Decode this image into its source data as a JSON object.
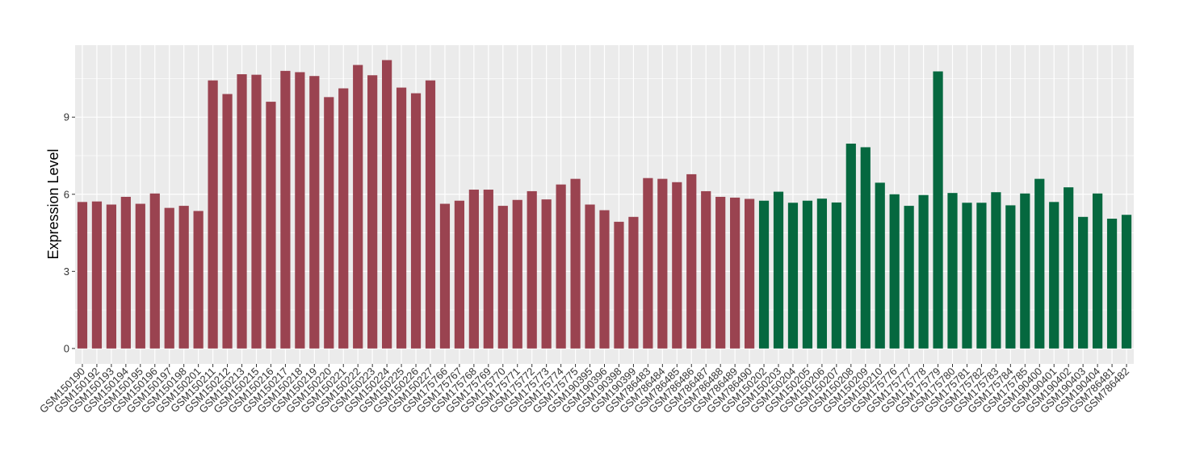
{
  "chart_data": {
    "type": "bar",
    "ylabel": "Expression Level",
    "xlabel": "",
    "ylim": [
      -0.6,
      11.8
    ],
    "yticks": [
      0,
      3,
      6,
      9
    ],
    "grid": true,
    "legend": "none",
    "colors": {
      "group1": "#9a4350",
      "group2": "#05683f",
      "panel": "#ebebeb",
      "grid": "#ffffff"
    },
    "categories": [
      "GSM150190",
      "GSM150192",
      "GSM150193",
      "GSM150194",
      "GSM150195",
      "GSM150196",
      "GSM150197",
      "GSM150198",
      "GSM150201",
      "GSM150211",
      "GSM150212",
      "GSM150213",
      "GSM150215",
      "GSM150216",
      "GSM150217",
      "GSM150218",
      "GSM150219",
      "GSM150220",
      "GSM150221",
      "GSM150222",
      "GSM150223",
      "GSM150224",
      "GSM150225",
      "GSM150226",
      "GSM150227",
      "GSM175766",
      "GSM175767",
      "GSM175768",
      "GSM175769",
      "GSM175770",
      "GSM175771",
      "GSM175772",
      "GSM175773",
      "GSM175774",
      "GSM175775",
      "GSM190395",
      "GSM190396",
      "GSM190398",
      "GSM190399",
      "GSM786483",
      "GSM786484",
      "GSM786485",
      "GSM786486",
      "GSM786487",
      "GSM786488",
      "GSM786489",
      "GSM786490",
      "GSM150202",
      "GSM150203",
      "GSM150204",
      "GSM150205",
      "GSM150206",
      "GSM150207",
      "GSM150208",
      "GSM150209",
      "GSM150210",
      "GSM175776",
      "GSM175777",
      "GSM175778",
      "GSM175779",
      "GSM175780",
      "GSM175781",
      "GSM175782",
      "GSM175783",
      "GSM175784",
      "GSM175785",
      "GSM190400",
      "GSM190401",
      "GSM190402",
      "GSM190403",
      "GSM190404",
      "GSM786481",
      "GSM786482"
    ],
    "values": [
      5.7,
      5.72,
      5.6,
      5.9,
      5.63,
      6.03,
      5.47,
      5.55,
      5.35,
      10.43,
      9.9,
      10.67,
      10.65,
      9.6,
      10.8,
      10.75,
      10.6,
      9.78,
      10.12,
      11.03,
      10.63,
      11.22,
      10.15,
      9.93,
      10.43,
      5.63,
      5.75,
      6.18,
      6.18,
      5.55,
      5.78,
      6.12,
      5.8,
      6.38,
      6.6,
      5.6,
      5.38,
      4.93,
      5.12,
      6.63,
      6.6,
      6.47,
      6.78,
      6.12,
      5.9,
      5.87,
      5.82,
      5.75,
      6.1,
      5.67,
      5.75,
      5.83,
      5.68,
      7.97,
      7.83,
      6.45,
      6.0,
      5.55,
      5.97,
      10.78,
      6.05,
      5.67,
      5.67,
      6.08,
      5.57,
      6.03,
      6.6,
      5.7,
      6.27,
      5.12,
      6.03,
      5.05,
      5.2
    ],
    "groups": [
      1,
      1,
      1,
      1,
      1,
      1,
      1,
      1,
      1,
      1,
      1,
      1,
      1,
      1,
      1,
      1,
      1,
      1,
      1,
      1,
      1,
      1,
      1,
      1,
      1,
      1,
      1,
      1,
      1,
      1,
      1,
      1,
      1,
      1,
      1,
      1,
      1,
      1,
      1,
      1,
      1,
      1,
      1,
      1,
      1,
      1,
      1,
      2,
      2,
      2,
      2,
      2,
      2,
      2,
      2,
      2,
      2,
      2,
      2,
      2,
      2,
      2,
      2,
      2,
      2,
      2,
      2,
      2,
      2,
      2,
      2,
      2,
      2
    ]
  }
}
